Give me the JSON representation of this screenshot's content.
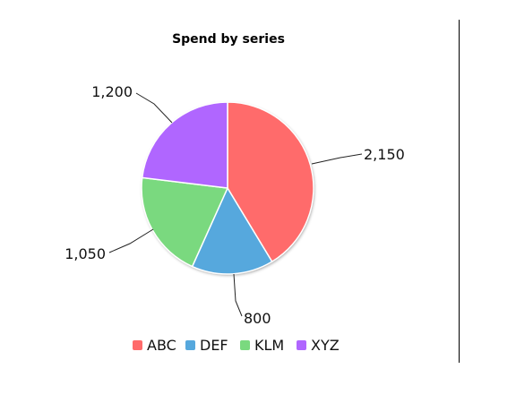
{
  "chart_data": {
    "type": "pie",
    "title": "Spend by series",
    "categories": [
      "ABC",
      "DEF",
      "KLM",
      "XYZ"
    ],
    "values": [
      2150,
      800,
      1050,
      1200
    ],
    "data_labels": [
      "2,150",
      "800",
      "1,050",
      "1,200"
    ],
    "colors": [
      "#ff6b6b",
      "#56a8dd",
      "#7ad97f",
      "#b066ff"
    ],
    "legend_position": "bottom",
    "start_angle_deg": 0,
    "direction": "clockwise"
  }
}
